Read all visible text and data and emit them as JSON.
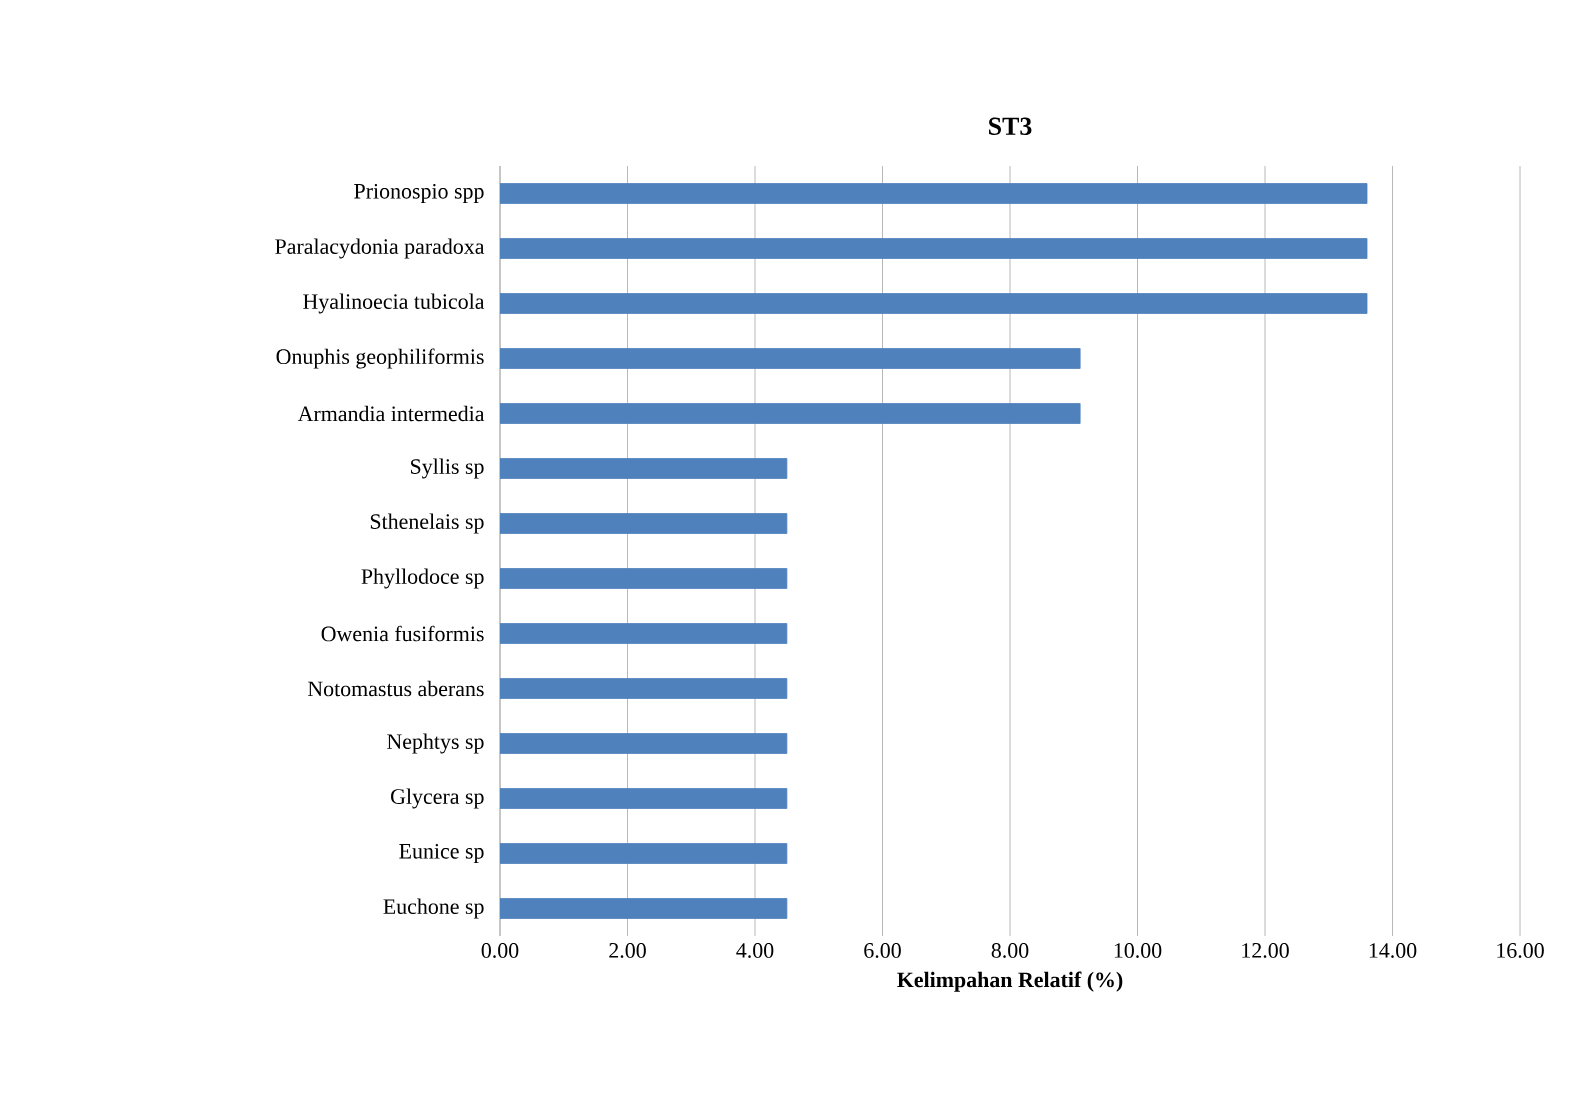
{
  "chart_data": {
    "type": "bar",
    "orientation": "horizontal",
    "title": "ST3",
    "xlabel": "Kelimpahan Relatif (%)",
    "categories": [
      "Prionospio spp",
      "Paralacydonia paradoxa",
      "Hyalinoecia tubicola",
      "Onuphis geophiliformis",
      "Armandia intermedia",
      "Syllis sp",
      "Sthenelais sp",
      "Phyllodoce sp",
      "Owenia fusiformis",
      "Notomastus aberans",
      "Nephtys sp",
      "Glycera sp",
      "Eunice sp",
      "Euchone sp"
    ],
    "values": [
      13.6,
      13.6,
      13.6,
      9.1,
      9.1,
      4.5,
      4.5,
      4.5,
      4.5,
      4.5,
      4.5,
      4.5,
      4.5,
      4.5
    ],
    "color": "#4f81bd",
    "xlim": [
      0,
      16
    ],
    "xticks": [
      {
        "value": 0,
        "label": "0.00"
      },
      {
        "value": 2,
        "label": "2.00"
      },
      {
        "value": 4,
        "label": "4.00"
      },
      {
        "value": 6,
        "label": "6.00"
      },
      {
        "value": 8,
        "label": "8.00"
      },
      {
        "value": 10,
        "label": "10.00"
      },
      {
        "value": 12,
        "label": "12.00"
      },
      {
        "value": 14,
        "label": "14.00"
      },
      {
        "value": 16,
        "label": "16.00"
      }
    ],
    "grid": "x"
  }
}
